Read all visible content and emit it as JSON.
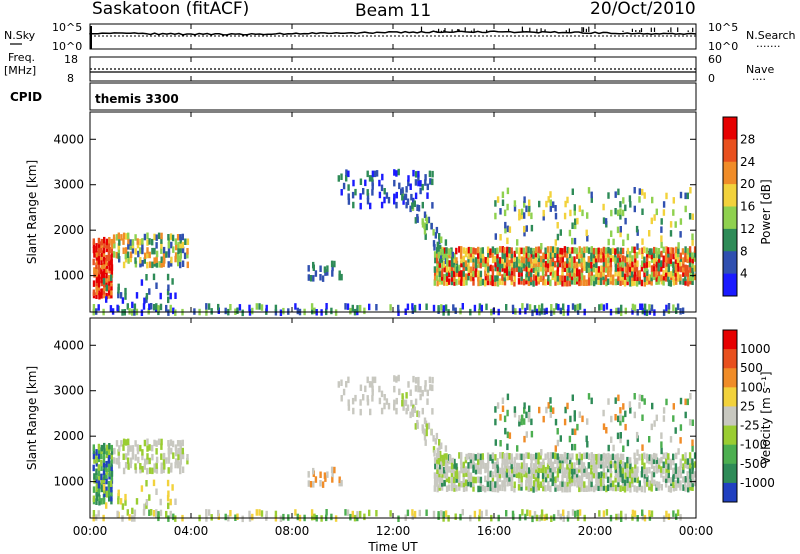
{
  "header": {
    "station": "Saskatoon (fitACF)",
    "beam": "Beam 11",
    "date": "20/Oct/2010"
  },
  "strip_labels": {
    "nsky": "N.Sky",
    "nsearch": "N.Search",
    "nsearch_mark": "·······",
    "freq_line1": "Freq.",
    "freq_line2": "[MHz]",
    "nave": "Nave",
    "nave_mark": "····",
    "cpid": "CPID",
    "cpid_value": "themis 3300",
    "nsky_tick_top": "10^5",
    "nsky_tick_bot": "10^0",
    "nsearch_tick_top": "10^5",
    "nsearch_tick_bot": "10^0",
    "freq_tick_top": "18",
    "freq_tick_bot": "8",
    "nave_tick_top": "60",
    "nave_tick_bot": "0"
  },
  "chart_data": [
    {
      "type": "heatmap",
      "ylabel": "Slant Range [km]",
      "xlabel": "Time UT",
      "xlim": [
        "00:00",
        "24:00"
      ],
      "ylim": [
        200,
        4600
      ],
      "x_ticks": [
        "00:00",
        "04:00",
        "08:00",
        "12:00",
        "16:00",
        "20:00",
        "00:00"
      ],
      "y_ticks": [
        1000,
        2000,
        3000,
        4000
      ],
      "colorbar_label": "Power [dB]",
      "colorbar_ticks": [
        "4",
        "8",
        "12",
        "16",
        "20",
        "24",
        "28"
      ],
      "colorbar_colors": [
        "#1a1aff",
        "#3050b0",
        "#2e8b57",
        "#8fd14f",
        "#f2d23c",
        "#f08c28",
        "#e8501e",
        "#e60000"
      ]
    },
    {
      "type": "heatmap",
      "ylabel": "Slant Range [km]",
      "xlabel": "Time UT",
      "xlim": [
        "00:00",
        "24:00"
      ],
      "ylim": [
        200,
        4600
      ],
      "x_ticks": [
        "00:00",
        "04:00",
        "08:00",
        "12:00",
        "16:00",
        "20:00",
        "00:00"
      ],
      "y_ticks": [
        1000,
        2000,
        3000,
        4000
      ],
      "colorbar_label": "Velocity [m s⁻¹]",
      "colorbar_ticks": [
        "1000",
        "500",
        "100",
        "25",
        "-25",
        "-100",
        "-500",
        "-1000"
      ],
      "colorbar_colors": [
        "#2040c0",
        "#2e8b57",
        "#4caf50",
        "#9acd32",
        "#c8c8c0",
        "#f2d23c",
        "#f08c28",
        "#e8501e",
        "#e60000"
      ]
    }
  ],
  "x_axis": {
    "label": "Time UT",
    "ticks": [
      "00:00",
      "04:00",
      "08:00",
      "12:00",
      "16:00",
      "20:00",
      "00:00"
    ]
  }
}
